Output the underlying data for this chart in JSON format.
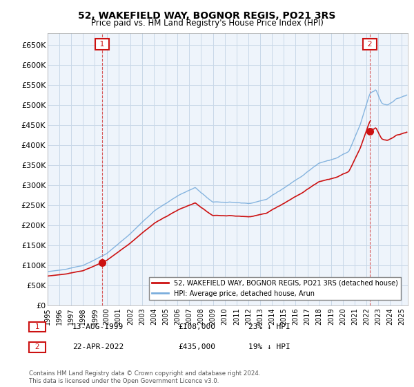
{
  "title": "52, WAKEFIELD WAY, BOGNOR REGIS, PO21 3RS",
  "subtitle": "Price paid vs. HM Land Registry's House Price Index (HPI)",
  "hpi_color": "#7aaddc",
  "price_color": "#cc1111",
  "marker_color": "#cc1111",
  "background_color": "#ffffff",
  "plot_bg_color": "#eef4fb",
  "grid_color": "#c8d8e8",
  "ylim": [
    0,
    680000
  ],
  "yticks": [
    0,
    50000,
    100000,
    150000,
    200000,
    250000,
    300000,
    350000,
    400000,
    450000,
    500000,
    550000,
    600000,
    650000
  ],
  "transaction1": {
    "date_label": "13-AUG-1999",
    "price": 108000,
    "hpi_pct": "23% ↓ HPI",
    "marker_num": "1",
    "x_year": 1999.62
  },
  "transaction2": {
    "date_label": "22-APR-2022",
    "price": 435000,
    "hpi_pct": "19% ↓ HPI",
    "marker_num": "2",
    "x_year": 2022.3
  },
  "legend_line1": "52, WAKEFIELD WAY, BOGNOR REGIS, PO21 3RS (detached house)",
  "legend_line2": "HPI: Average price, detached house, Arun",
  "footnote": "Contains HM Land Registry data © Crown copyright and database right 2024.\nThis data is licensed under the Open Government Licence v3.0.",
  "xmin": 1995.0,
  "xmax": 2025.5
}
